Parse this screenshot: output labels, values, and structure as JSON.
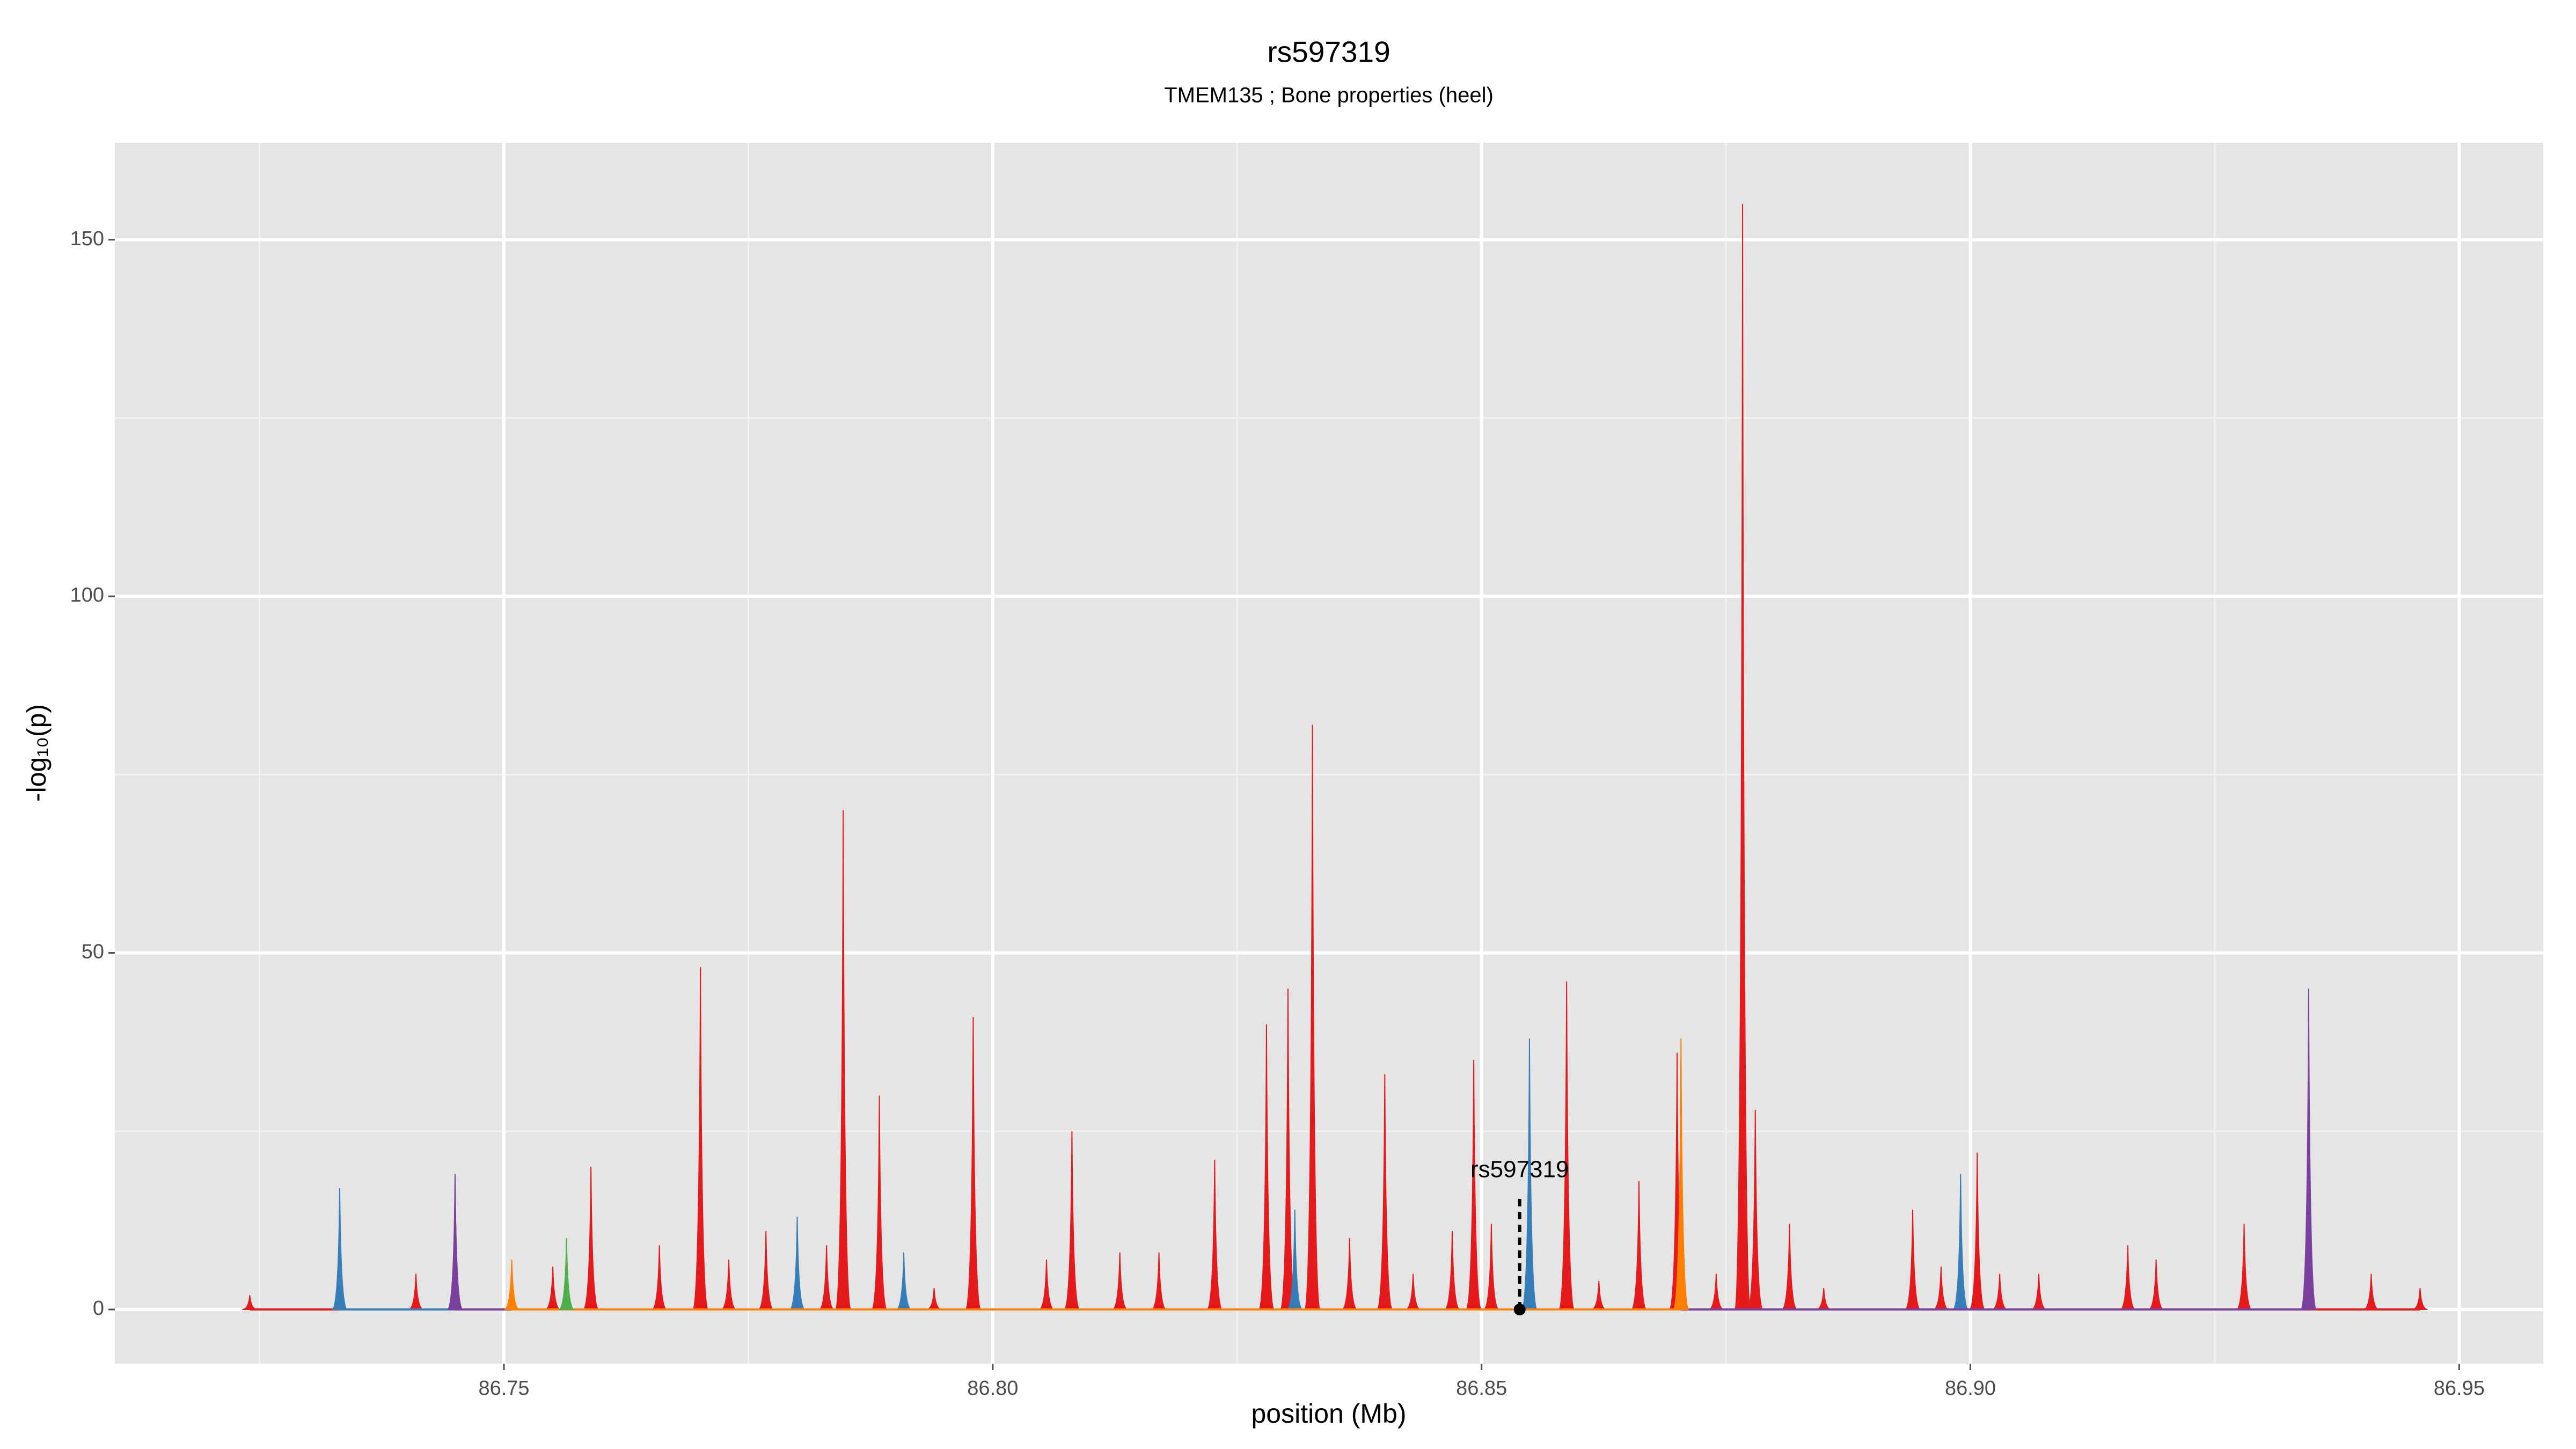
{
  "chart_data": {
    "type": "spike",
    "title": "rs597319",
    "subtitle": "TMEM135 ; Bone properties (heel)",
    "x_label": "position (Mb)",
    "y_label": "-log₁₀(p)",
    "xlim": [
      86.7102,
      86.9586
    ],
    "ylim": [
      -7.6,
      163.6
    ],
    "xticks": [
      86.75,
      {
        "value": 86.8,
        "label": "86.80"
      },
      86.85,
      {
        "value": 86.9,
        "label": "86.90"
      },
      86.95
    ],
    "yticks": [
      0,
      50,
      100,
      150
    ],
    "grid": true,
    "series": [
      {
        "color": "#e41a1c",
        "x": [
          86.724,
          86.741,
          86.745,
          86.7508,
          86.755,
          86.7589,
          86.7659,
          86.7701,
          86.773,
          86.7768,
          86.783,
          86.7847,
          86.7884,
          86.794,
          86.798,
          86.8055,
          86.8081,
          86.813,
          86.817,
          86.8227,
          86.828,
          86.8302,
          86.8327,
          86.8365,
          86.8401,
          86.843,
          86.847,
          86.8492,
          86.851,
          86.8587,
          86.862,
          86.8661,
          86.87,
          86.874,
          86.8767,
          86.878,
          86.8815,
          86.885,
          86.8941,
          86.897,
          86.9007,
          86.903,
          86.907,
          86.9161,
          86.919,
          86.928,
          86.941,
          86.946
        ],
        "values": [
          2,
          5,
          18,
          5,
          6,
          20,
          9,
          48,
          7,
          11,
          9,
          70,
          30,
          3,
          41,
          7,
          25,
          8,
          8,
          21,
          40,
          45,
          82,
          10,
          33,
          5,
          11,
          35,
          12,
          46,
          4,
          18,
          36,
          5,
          155,
          28,
          12,
          3,
          14,
          6,
          22,
          5,
          5,
          9,
          7,
          12,
          5,
          3
        ]
      },
      {
        "color": "#377eb8",
        "x": [
          86.7332,
          86.78,
          86.7909,
          86.8309,
          86.8549,
          86.899
        ],
        "values": [
          17,
          13,
          8,
          14,
          38,
          19
        ]
      },
      {
        "color": "#7b3f9e",
        "x": [
          86.745,
          86.9346
        ],
        "values": [
          19,
          45
        ]
      },
      {
        "color": "#ff7f00",
        "x": [
          86.7508,
          86.8704
        ],
        "values": [
          7,
          38
        ]
      },
      {
        "color": "#4daf4a",
        "x": [
          86.7564
        ],
        "values": [
          10
        ]
      }
    ],
    "annotation": {
      "label": "rs597319",
      "x": 86.8539,
      "y": 0
    }
  }
}
